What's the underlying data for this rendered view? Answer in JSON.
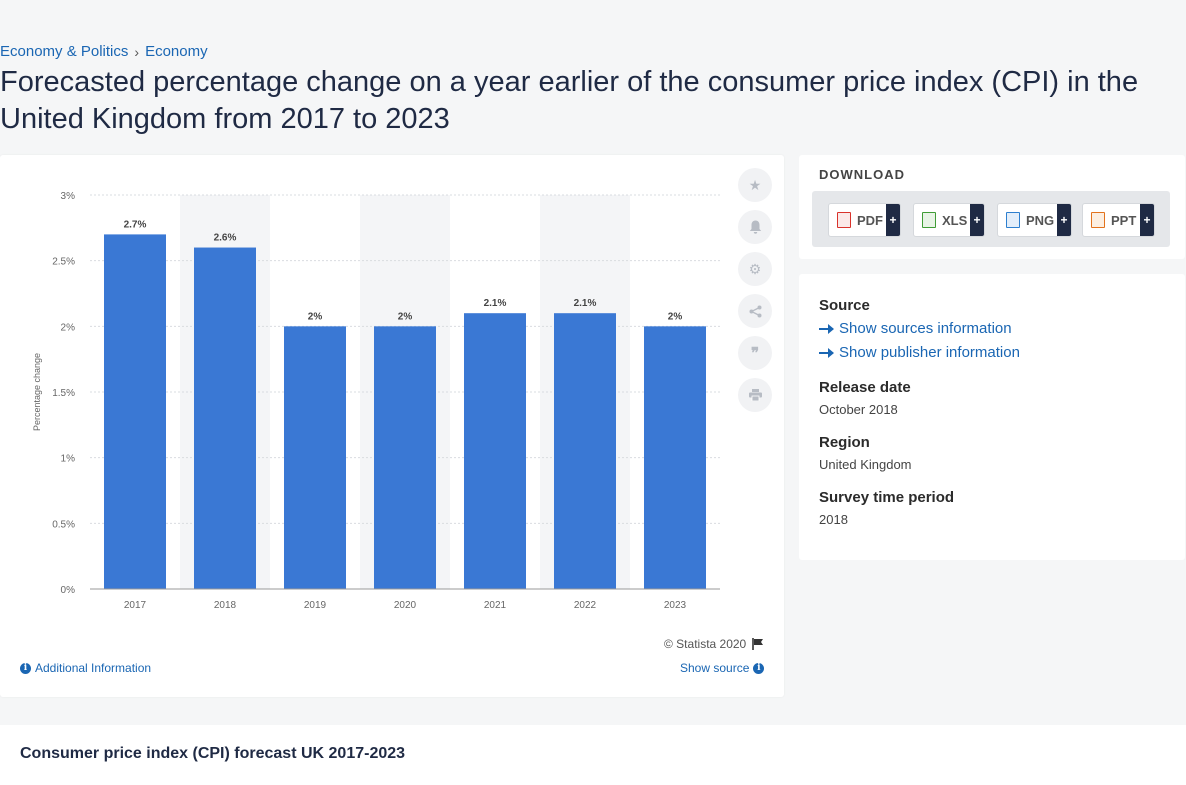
{
  "breadcrumb": {
    "items": [
      "Economy & Politics",
      "Economy"
    ],
    "separator": "›"
  },
  "page_title": "Forecasted percentage change on a year earlier of the consumer price index (CPI) in the United Kingdom from 2017 to 2023",
  "chart": {
    "copyright": "© Statista 2020",
    "additional_info": "Additional Information",
    "show_source": "Show source"
  },
  "chart_data": {
    "type": "bar",
    "categories": [
      "2017",
      "2018",
      "2019",
      "2020",
      "2021",
      "2022",
      "2023"
    ],
    "values": [
      2.7,
      2.6,
      2,
      2,
      2.1,
      2.1,
      2
    ],
    "data_labels": [
      "2.7%",
      "2.6%",
      "2%",
      "2%",
      "2.1%",
      "2.1%",
      "2%"
    ],
    "ylabel": "Percentage change",
    "ylim": [
      0,
      3
    ],
    "yticks": [
      "0%",
      "0.5%",
      "1%",
      "1.5%",
      "2%",
      "2.5%",
      "3%"
    ],
    "bar_color": "#3a78d4",
    "grid": true
  },
  "download": {
    "title": "DOWNLOAD",
    "buttons": [
      {
        "label": "PDF",
        "icon": "pdf-file-icon",
        "color": "#d9322b"
      },
      {
        "label": "XLS",
        "icon": "xls-file-icon",
        "color": "#3f9c35"
      },
      {
        "label": "PNG",
        "icon": "png-file-icon",
        "color": "#2d7fcf"
      },
      {
        "label": "PPT",
        "icon": "ppt-file-icon",
        "color": "#e2731e"
      }
    ],
    "plus": "+"
  },
  "meta": {
    "source_label": "Source",
    "show_sources": "Show sources information",
    "show_publisher": "Show publisher information",
    "release_label": "Release date",
    "release_value": "October 2018",
    "region_label": "Region",
    "region_value": "United Kingdom",
    "survey_label": "Survey time period",
    "survey_value": "2018"
  },
  "tools": [
    "star-icon",
    "bell-icon",
    "gear-icon",
    "share-icon",
    "quote-icon",
    "print-icon"
  ],
  "bottom": {
    "title": "Consumer price index (CPI) forecast UK 2017-2023"
  }
}
